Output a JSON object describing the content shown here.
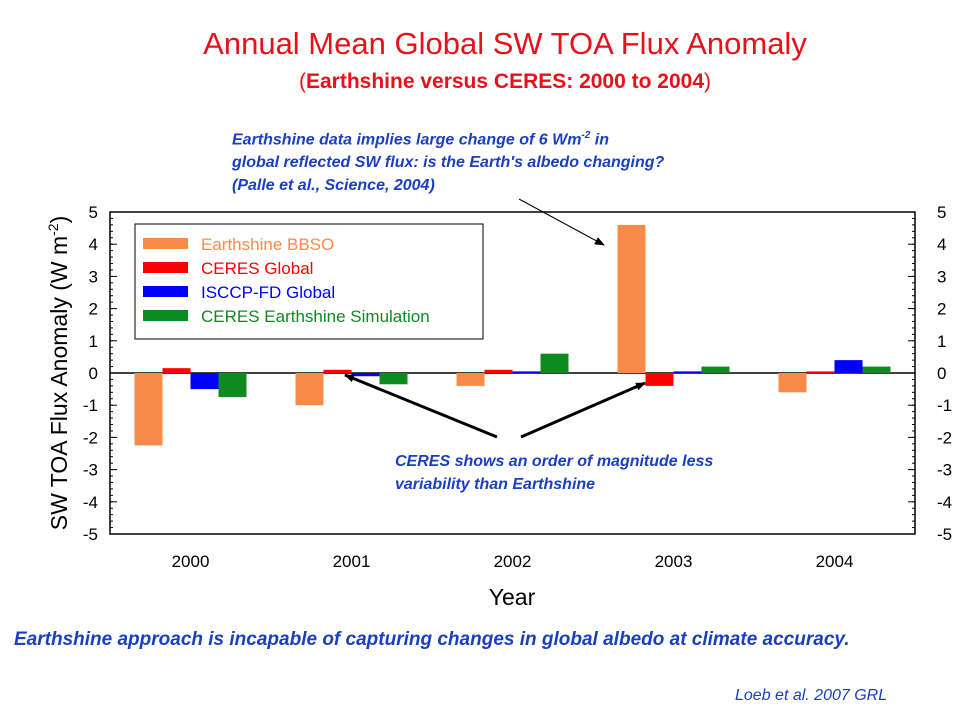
{
  "chart_data": {
    "type": "bar",
    "title": "Annual Mean Global SW TOA Flux Anomaly",
    "subtitle": "Earthshine versus CERES: 2000 to 2004",
    "xlabel": "Year",
    "ylabel_main": "SW TOA Flux Anomaly (W m",
    "ylabel_exp": "-2",
    "ylabel_close": ")",
    "ylim": [
      -5,
      5
    ],
    "yticks": [
      "5",
      "4",
      "3",
      "2",
      "1",
      "0",
      "-1",
      "-2",
      "-3",
      "-4",
      "-5"
    ],
    "categories": [
      "2000",
      "2001",
      "2002",
      "2003",
      "2004"
    ],
    "series": [
      {
        "name": "Earthshine BBSO",
        "color": "#f98b4a",
        "values": [
          -2.25,
          -1.0,
          -0.4,
          4.6,
          -0.6
        ]
      },
      {
        "name": "CERES Global",
        "color": "#ff0000",
        "values": [
          0.15,
          0.1,
          0.1,
          -0.4,
          0.05
        ]
      },
      {
        "name": "ISCCP-FD Global",
        "color": "#0000ff",
        "values": [
          -0.5,
          -0.1,
          0.05,
          0.05,
          0.4
        ]
      },
      {
        "name": "CERES Earthshine Simulation",
        "color": "#0f8a1e",
        "values": [
          -0.75,
          -0.35,
          0.6,
          0.2,
          0.2
        ]
      }
    ],
    "legend_position": "top-left",
    "grid": false
  },
  "annotations": {
    "note1_line1": "Earthshine data implies large change of 6 Wm",
    "note1_exp": "-2",
    "note1_line1_end": " in",
    "note1_line2": "global reflected SW flux: is the Earth's albedo changing?",
    "note1_line3": "(Palle et al., Science, 2004)",
    "note2_line1": "CERES shows an order of magnitude less",
    "note2_line2": "variability than Earthshine"
  },
  "conclusion": "Earthshine approach is incapable of capturing changes in global albedo at climate accuracy.",
  "citation": "Loeb et al. 2007 GRL"
}
